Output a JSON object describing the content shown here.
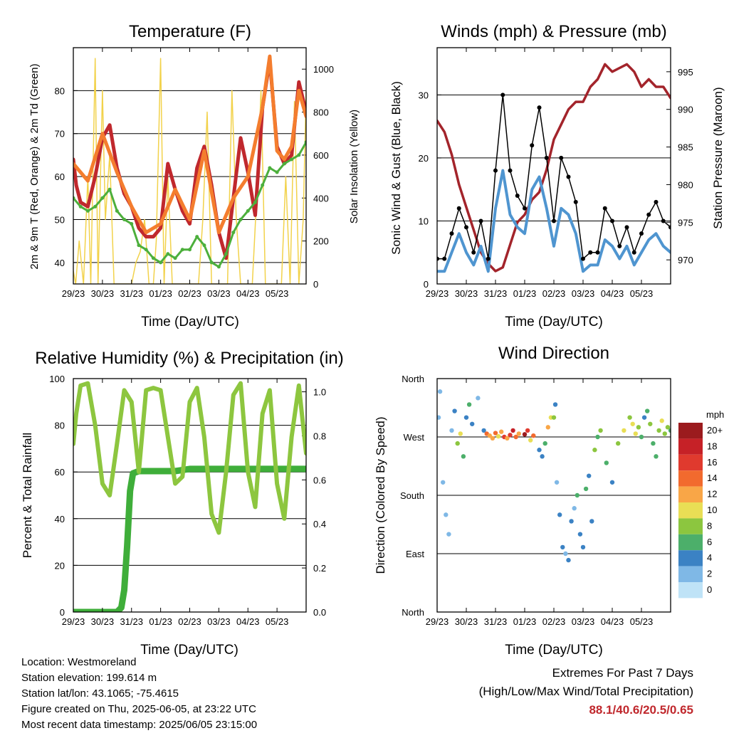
{
  "chart_data": [
    {
      "type": "line",
      "title": "Temperature (F)",
      "xlabel": "Time (Day/UTC)",
      "ylabel": "2m & 9m T (Red, Orange) & 2m Td (Green)",
      "ylabel_right": "Solar Insolation (Yellow)",
      "xticks": [
        "29/23",
        "30/23",
        "31/23",
        "01/23",
        "02/23",
        "03/23",
        "04/23",
        "05/23"
      ],
      "ylim": [
        35,
        90
      ],
      "yticks": [
        40,
        50,
        60,
        70,
        80
      ],
      "ylim_right": [
        0,
        1100
      ],
      "yticks_right": [
        0,
        200,
        400,
        600,
        800,
        1000
      ],
      "grid": true,
      "series": [
        {
          "name": "2m T",
          "color": "#c0282d",
          "x": [
            0,
            0.1,
            0.25,
            0.5,
            0.75,
            1,
            1.25,
            1.5,
            1.75,
            2,
            2.25,
            2.5,
            2.75,
            3,
            3.25,
            3.5,
            3.75,
            4,
            4.25,
            4.5,
            4.75,
            5,
            5.25,
            5.5,
            5.75,
            6,
            6.25,
            6.5,
            6.75,
            7,
            7.25,
            7.5,
            7.75,
            8
          ],
          "y": [
            64,
            58,
            54,
            53,
            60,
            69,
            72,
            62,
            56,
            53,
            48,
            46,
            46,
            48,
            63,
            57,
            52,
            49,
            62,
            67,
            58,
            47,
            41,
            55,
            69,
            61,
            51,
            76,
            87,
            67,
            63,
            65,
            82,
            75
          ]
        },
        {
          "name": "9m T",
          "color": "#f47d2e",
          "x": [
            0,
            0.5,
            1,
            1.5,
            2,
            2.5,
            3,
            3.5,
            4,
            4.5,
            5,
            5.5,
            6,
            6.5,
            6.75,
            7,
            7.25,
            7.5,
            7.75,
            8
          ],
          "y": [
            63,
            59,
            70,
            61,
            53,
            47,
            49,
            57,
            50,
            66,
            47,
            55,
            60,
            76,
            88,
            66,
            64,
            67,
            80,
            74
          ]
        },
        {
          "name": "2m Td",
          "color": "#4caf3c",
          "x": [
            0,
            0.25,
            0.5,
            0.75,
            1,
            1.25,
            1.5,
            1.75,
            2,
            2.25,
            2.5,
            2.75,
            3,
            3.25,
            3.5,
            3.75,
            4,
            4.25,
            4.5,
            4.75,
            5,
            5.25,
            5.5,
            5.75,
            6,
            6.25,
            6.5,
            6.75,
            7,
            7.25,
            7.5,
            7.75,
            8
          ],
          "y": [
            55,
            53,
            52,
            53,
            55,
            57,
            52,
            50,
            49,
            44,
            43,
            41,
            40,
            42,
            41,
            43,
            43,
            46,
            44,
            40,
            39,
            42,
            47,
            50,
            52,
            54,
            58,
            62,
            61,
            63,
            64,
            65,
            68
          ]
        },
        {
          "name": "Solar Insolation",
          "axis": "right",
          "color": "#f2d24b",
          "x": [
            0,
            0.08,
            0.2,
            0.35,
            0.5,
            0.6,
            0.75,
            0.85,
            1,
            1.1,
            1.25,
            1.4,
            1.55,
            1.7,
            1.85,
            2,
            2.15,
            2.3,
            2.45,
            2.6,
            2.75,
            2.85,
            3,
            3.12,
            3.25,
            3.4,
            3.55,
            3.7,
            3.85,
            4,
            4.15,
            4.3,
            4.45,
            4.6,
            4.75,
            4.9,
            5,
            5.15,
            5.3,
            5.45,
            5.6,
            5.75,
            5.9,
            6,
            6.15,
            6.3,
            6.45,
            6.6,
            6.75,
            6.9,
            7,
            7.15,
            7.3,
            7.45,
            7.6,
            7.75,
            7.9,
            8
          ],
          "y": [
            60,
            0,
            200,
            0,
            500,
            0,
            1050,
            0,
            900,
            300,
            600,
            0,
            0,
            0,
            0,
            0,
            100,
            150,
            300,
            0,
            0,
            200,
            1050,
            0,
            500,
            0,
            0,
            0,
            0,
            0,
            0,
            0,
            300,
            800,
            0,
            0,
            0,
            0,
            0,
            900,
            300,
            0,
            0,
            0,
            0,
            400,
            900,
            0,
            0,
            0,
            0,
            0,
            500,
            0,
            850,
            0,
            300,
            900
          ]
        }
      ]
    },
    {
      "type": "line",
      "title": "Winds (mph) & Pressure (mb)",
      "xlabel": "Time (Day/UTC)",
      "ylabel": "Sonic Wind & Gust (Blue, Black)",
      "ylabel_right": "Station Pressure (Maroon)",
      "xticks": [
        "29/23",
        "30/23",
        "31/23",
        "01/23",
        "02/23",
        "03/23",
        "04/23",
        "05/23"
      ],
      "ylim": [
        0,
        37.5
      ],
      "yticks": [
        0,
        10,
        20,
        30
      ],
      "ylim_right": [
        966.8,
        998.2
      ],
      "yticks_right": [
        970,
        975,
        980,
        985,
        990,
        995
      ],
      "grid": true,
      "series": [
        {
          "name": "Sonic Wind",
          "color": "#4f95d0",
          "x": [
            0,
            0.25,
            0.5,
            0.75,
            1,
            1.25,
            1.5,
            1.75,
            2,
            2.25,
            2.5,
            2.75,
            3,
            3.25,
            3.5,
            3.75,
            4,
            4.25,
            4.5,
            4.75,
            5,
            5.25,
            5.5,
            5.75,
            6,
            6.25,
            6.5,
            6.75,
            7,
            7.25,
            7.5,
            7.75,
            8
          ],
          "y": [
            2,
            2,
            5,
            8,
            5,
            3,
            6,
            2,
            12,
            18,
            11,
            9,
            8,
            15,
            17,
            12,
            6,
            12,
            11,
            8,
            2,
            3,
            3,
            7,
            6,
            4,
            6,
            3,
            5,
            7,
            8,
            6,
            5
          ]
        },
        {
          "name": "Gust",
          "color": "#000000",
          "x": [
            0,
            0.25,
            0.5,
            0.75,
            1,
            1.25,
            1.5,
            1.75,
            2,
            2.25,
            2.5,
            2.75,
            3,
            3.25,
            3.5,
            3.75,
            4,
            4.25,
            4.5,
            4.75,
            5,
            5.25,
            5.5,
            5.75,
            6,
            6.25,
            6.5,
            6.75,
            7,
            7.25,
            7.5,
            7.75,
            8
          ],
          "y": [
            4,
            4,
            8,
            12,
            9,
            5,
            10,
            4,
            18,
            30,
            18,
            14,
            12,
            22,
            28,
            20,
            10,
            20,
            17,
            13,
            4,
            5,
            5,
            12,
            10,
            6,
            9,
            5,
            8,
            11,
            13,
            10,
            9
          ]
        },
        {
          "name": "Station Pressure",
          "axis": "right",
          "color": "#a3242b",
          "x": [
            0,
            0.25,
            0.5,
            0.75,
            1,
            1.25,
            1.5,
            1.75,
            2,
            2.25,
            2.5,
            2.75,
            3,
            3.25,
            3.5,
            3.75,
            4,
            4.25,
            4.5,
            4.75,
            5,
            5.25,
            5.5,
            5.75,
            6,
            6.25,
            6.5,
            6.75,
            7,
            7.25,
            7.5,
            7.75,
            8
          ],
          "y": [
            988.5,
            987,
            984,
            980,
            977,
            974,
            971,
            969.5,
            968.5,
            969,
            972,
            975,
            976,
            978,
            979,
            982,
            986,
            988,
            990,
            991,
            991,
            993,
            994,
            996,
            995,
            995.5,
            996,
            995,
            993,
            994,
            993,
            993,
            991.5
          ]
        }
      ]
    },
    {
      "type": "line",
      "title": "Relative Humidity (%) & Precipitation (in)",
      "xlabel": "Time (Day/UTC)",
      "ylabel": "Percent & Total Rainfall",
      "xticks": [
        "29/23",
        "30/23",
        "31/23",
        "01/23",
        "02/23",
        "03/23",
        "04/23",
        "05/23"
      ],
      "ylim": [
        0,
        100
      ],
      "yticks": [
        0,
        20,
        40,
        60,
        80,
        100
      ],
      "ylim_right": [
        0,
        1.06
      ],
      "yticks_right": [
        0.0,
        0.2,
        0.4,
        0.6,
        0.8,
        1.0
      ],
      "grid": true,
      "series": [
        {
          "name": "Relative Humidity",
          "color": "#8dc63f",
          "x": [
            0,
            0.1,
            0.25,
            0.5,
            0.75,
            1,
            1.25,
            1.5,
            1.75,
            2,
            2.25,
            2.5,
            2.75,
            3,
            3.25,
            3.5,
            3.75,
            4,
            4.25,
            4.5,
            4.75,
            5,
            5.25,
            5.5,
            5.75,
            6,
            6.25,
            6.5,
            6.75,
            7,
            7.25,
            7.5,
            7.75,
            8
          ],
          "y": [
            72,
            85,
            97,
            98,
            80,
            55,
            50,
            72,
            95,
            90,
            60,
            95,
            96,
            95,
            75,
            55,
            58,
            90,
            96,
            75,
            42,
            34,
            60,
            93,
            98,
            60,
            45,
            85,
            95,
            55,
            40,
            75,
            97,
            68
          ]
        },
        {
          "name": "Total Precipitation",
          "axis": "right",
          "color": "#3fae3a",
          "x": [
            0,
            0.5,
            1,
            1.25,
            1.5,
            1.65,
            1.75,
            1.85,
            1.95,
            2.05,
            2.25,
            2.5,
            3,
            3.5,
            4,
            4.5,
            5,
            6,
            7,
            8
          ],
          "y": [
            0,
            0,
            0,
            0,
            0,
            0.02,
            0.1,
            0.3,
            0.55,
            0.63,
            0.64,
            0.64,
            0.64,
            0.64,
            0.65,
            0.65,
            0.65,
            0.65,
            0.65,
            0.65
          ]
        }
      ]
    },
    {
      "type": "scatter",
      "title": "Wind Direction",
      "xlabel": "Time (Day/UTC)",
      "ylabel": "Direction (Colored By Speed)",
      "xticks": [
        "29/23",
        "30/23",
        "31/23",
        "01/23",
        "02/23",
        "03/23",
        "04/23",
        "05/23"
      ],
      "yticks": [
        "North",
        "East",
        "South",
        "West",
        "North"
      ],
      "ylim": [
        0,
        360
      ],
      "grid": true,
      "legend": {
        "title": "mph",
        "placement": "right",
        "labels": [
          "20+",
          "18",
          "16",
          "14",
          "12",
          "10",
          "8",
          "6",
          "4",
          "2",
          "0"
        ],
        "colors": [
          "#9b1b1e",
          "#c62127",
          "#e03a2e",
          "#f26a2e",
          "#f9a647",
          "#e9de55",
          "#8cc63f",
          "#4caf6a",
          "#3b82c4",
          "#7fb8e6",
          "#bfe3f7"
        ]
      },
      "points": [
        [
          0.05,
          300,
          1
        ],
        [
          0.1,
          340,
          1
        ],
        [
          0.2,
          200,
          1
        ],
        [
          0.3,
          150,
          2
        ],
        [
          0.4,
          120,
          1
        ],
        [
          0.5,
          280,
          2
        ],
        [
          0.6,
          310,
          3
        ],
        [
          0.7,
          260,
          7
        ],
        [
          0.8,
          275,
          9
        ],
        [
          0.9,
          240,
          6
        ],
        [
          1.0,
          300,
          4
        ],
        [
          1.1,
          320,
          6
        ],
        [
          1.2,
          290,
          3
        ],
        [
          1.4,
          330,
          2
        ],
        [
          1.6,
          280,
          3
        ],
        [
          1.7,
          275,
          13
        ],
        [
          1.8,
          272,
          11
        ],
        [
          1.9,
          268,
          12
        ],
        [
          2.0,
          276,
          14
        ],
        [
          2.1,
          271,
          10
        ],
        [
          2.2,
          278,
          12
        ],
        [
          2.3,
          270,
          16
        ],
        [
          2.4,
          268,
          11
        ],
        [
          2.5,
          273,
          15
        ],
        [
          2.6,
          280,
          18
        ],
        [
          2.7,
          270,
          14
        ],
        [
          2.8,
          275,
          12
        ],
        [
          3.0,
          274,
          20
        ],
        [
          3.1,
          280,
          16
        ],
        [
          3.2,
          265,
          10
        ],
        [
          3.3,
          272,
          13
        ],
        [
          3.5,
          250,
          4
        ],
        [
          3.6,
          240,
          3
        ],
        [
          3.7,
          260,
          5
        ],
        [
          3.8,
          285,
          11
        ],
        [
          3.9,
          300,
          9
        ],
        [
          4.0,
          300,
          7
        ],
        [
          4.05,
          320,
          3
        ],
        [
          4.1,
          200,
          2
        ],
        [
          4.2,
          150,
          3
        ],
        [
          4.3,
          100,
          4
        ],
        [
          4.4,
          90,
          2
        ],
        [
          4.5,
          80,
          3
        ],
        [
          4.6,
          140,
          4
        ],
        [
          4.7,
          160,
          2
        ],
        [
          4.8,
          180,
          5
        ],
        [
          4.9,
          120,
          4
        ],
        [
          5.0,
          100,
          3
        ],
        [
          5.1,
          190,
          6
        ],
        [
          5.2,
          210,
          4
        ],
        [
          5.3,
          140,
          3
        ],
        [
          5.4,
          250,
          7
        ],
        [
          5.5,
          270,
          5
        ],
        [
          5.6,
          280,
          8
        ],
        [
          5.8,
          230,
          5
        ],
        [
          6.0,
          200,
          3
        ],
        [
          6.2,
          260,
          7
        ],
        [
          6.4,
          280,
          9
        ],
        [
          6.6,
          300,
          8
        ],
        [
          6.7,
          290,
          10
        ],
        [
          6.8,
          275,
          9
        ],
        [
          6.9,
          285,
          7
        ],
        [
          7.0,
          270,
          5
        ],
        [
          7.1,
          300,
          4
        ],
        [
          7.2,
          310,
          6
        ],
        [
          7.3,
          290,
          8
        ],
        [
          7.4,
          260,
          5
        ],
        [
          7.5,
          240,
          6
        ],
        [
          7.6,
          280,
          7
        ],
        [
          7.7,
          295,
          9
        ],
        [
          7.8,
          275,
          8
        ],
        [
          7.9,
          285,
          7
        ],
        [
          8.0,
          280,
          6
        ]
      ]
    }
  ],
  "footer": {
    "location": "Location: Westmoreland",
    "elevation": "Station elevation: 199.614 m",
    "latlon": "Station lat/lon: 43.1065; -75.4615",
    "created": "Figure created on Thu, 2025-06-05, at 23:22 UTC",
    "recent": "Most recent data timestamp: 2025/06/05 23:15:00"
  },
  "extremes": {
    "title": "Extremes For Past 7 Days",
    "subtitle": "(High/Low/Max Wind/Total Precipitation)",
    "values": "88.1/40.6/20.5/0.65"
  }
}
